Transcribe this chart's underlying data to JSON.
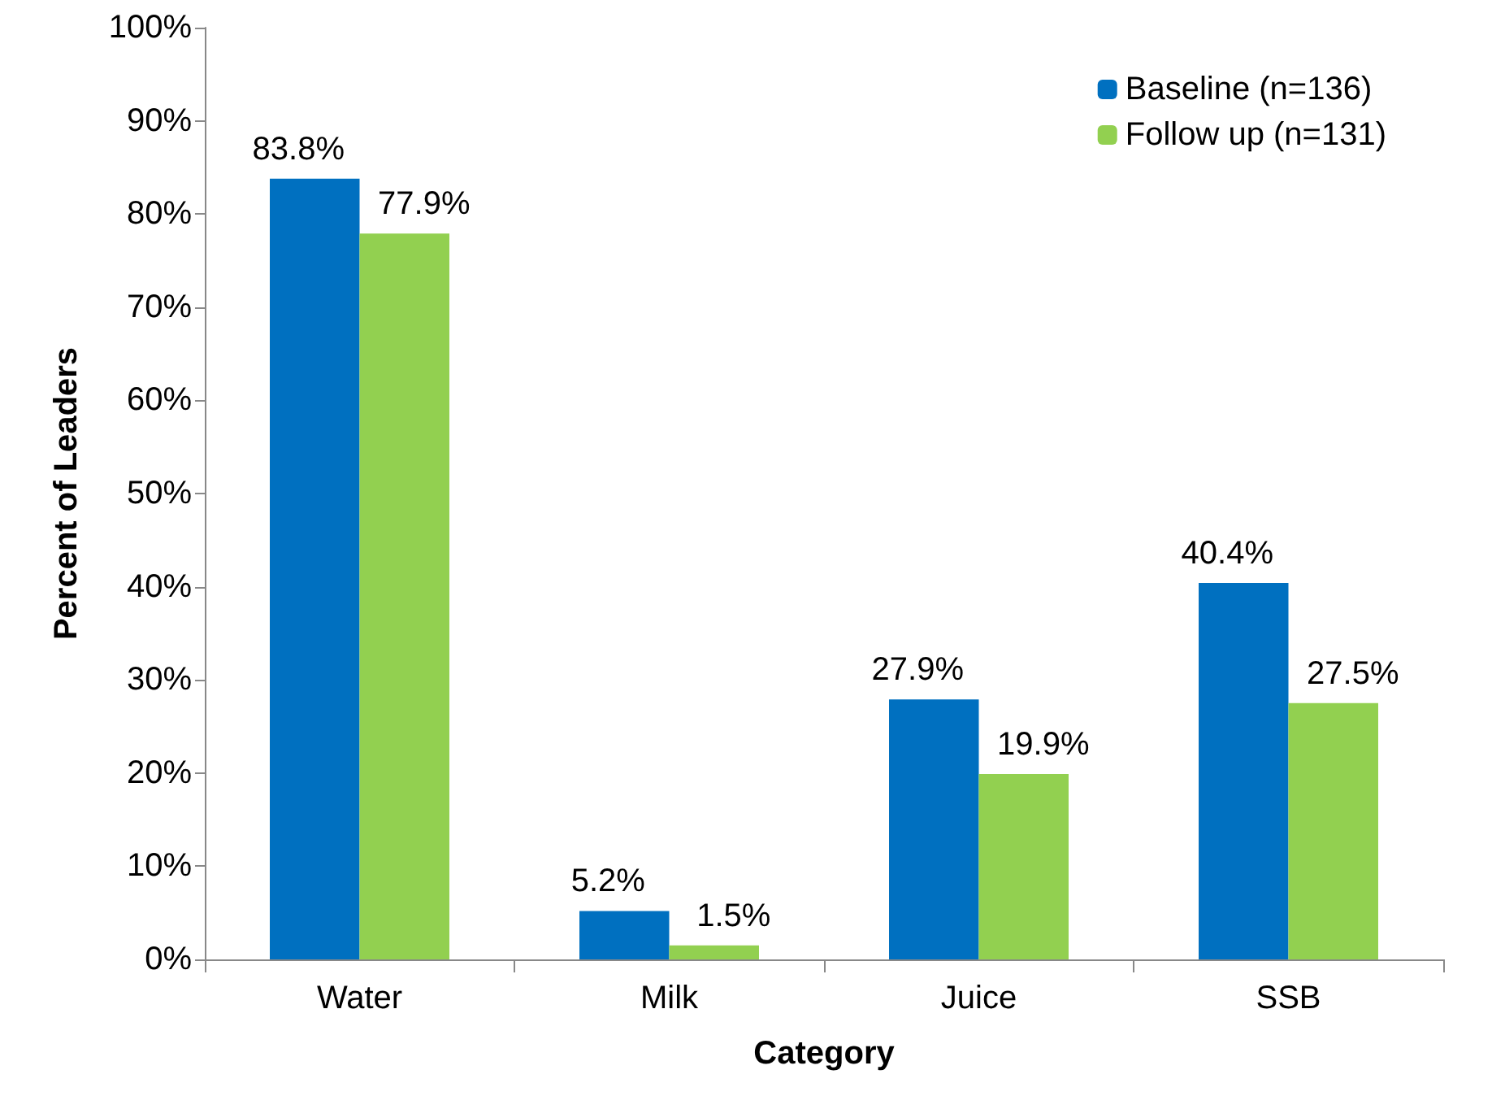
{
  "chart_data": {
    "type": "bar",
    "xlabel": "Category",
    "ylabel": "Percent of Leaders",
    "categories": [
      "Water",
      "Milk",
      "Juice",
      "SSB"
    ],
    "series": [
      {
        "name": "Baseline (n=136)",
        "color": "#0070c0",
        "values": [
          83.8,
          5.2,
          27.9,
          40.4
        ],
        "value_labels": [
          "83.8%",
          "5.2%",
          "27.9%",
          "40.4%"
        ]
      },
      {
        "name": "Follow up (n=131)",
        "color": "#92d050",
        "values": [
          77.9,
          1.5,
          19.9,
          27.5
        ],
        "value_labels": [
          "77.9%",
          "1.5%",
          "19.9%",
          "27.5%"
        ]
      }
    ],
    "ylim": [
      0,
      100
    ],
    "yticks": [
      {
        "value": 0,
        "label": "0%"
      },
      {
        "value": 10,
        "label": "10%"
      },
      {
        "value": 20,
        "label": "20%"
      },
      {
        "value": 30,
        "label": "30%"
      },
      {
        "value": 40,
        "label": "40%"
      },
      {
        "value": 50,
        "label": "50%"
      },
      {
        "value": 60,
        "label": "60%"
      },
      {
        "value": 70,
        "label": "70%"
      },
      {
        "value": 80,
        "label": "80%"
      },
      {
        "value": 90,
        "label": "90%"
      },
      {
        "value": 100,
        "label": "100%"
      }
    ],
    "grid": false,
    "legend": "top right"
  }
}
